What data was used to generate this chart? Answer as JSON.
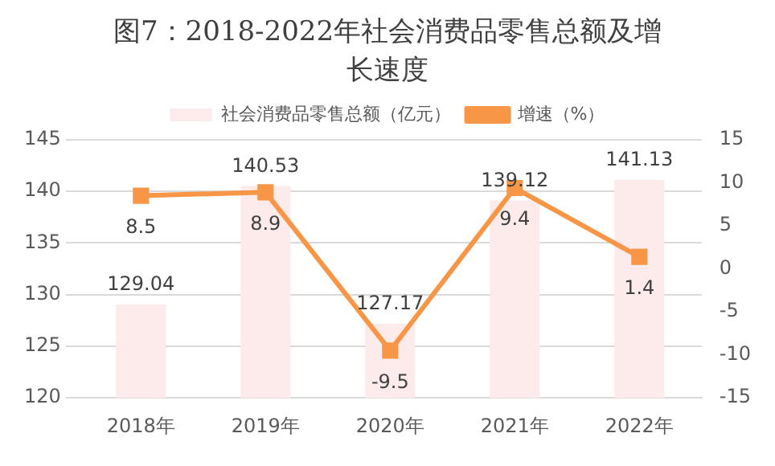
{
  "chart_data": {
    "type": "bar",
    "title": "图7：2018-2022年社会消费品零售总额及增长速度",
    "categories": [
      "2018年",
      "2019年",
      "2020年",
      "2021年",
      "2022年"
    ],
    "series": [
      {
        "name": "社会消费品零售总额（亿元）",
        "color": "#fdeaea",
        "values": [
          129.04,
          140.53,
          127.17,
          139.12,
          141.13
        ]
      },
      {
        "name": "增速（%）",
        "type": "line",
        "axis": "y2",
        "color": "#f79646",
        "values": [
          8.5,
          8.9,
          -9.5,
          9.4,
          1.4
        ],
        "marker": "square"
      }
    ],
    "ylim": [
      120,
      145
    ],
    "yticks": [
      120,
      125,
      130,
      135,
      140,
      145
    ],
    "y2lim": [
      -15,
      15
    ],
    "y2ticks": [
      -15,
      -10,
      -5,
      0,
      5,
      10,
      15
    ],
    "grid": "y",
    "legend": "top",
    "data_labels": true
  }
}
